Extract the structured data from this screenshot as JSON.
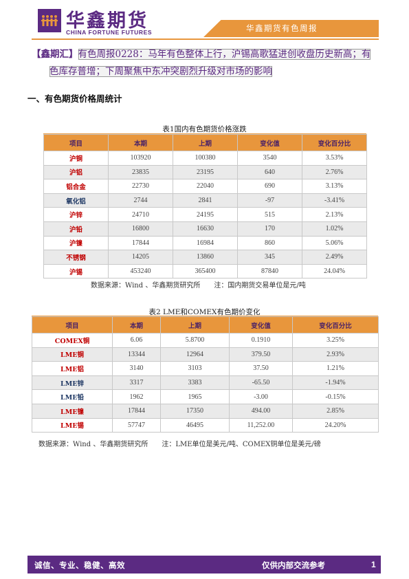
{
  "header": {
    "brand_cn": "华鑫期货",
    "brand_en": "CHINA FORTUNE FUTURES",
    "banner": "华鑫期货有色周报"
  },
  "title": {
    "tag": "【鑫期汇】",
    "text_line1": "有色周报0228：马年有色整体上行，沪锡高歌猛进创收盘历史新高；有",
    "text_line2": "色库存普增；下周聚焦中东冲突剧烈升级对市场的影响"
  },
  "section": {
    "heading": "一、有色期货价格周统计"
  },
  "table1": {
    "caption": "表1国内有色期货价格涨跌",
    "headers": [
      "项目",
      "本期",
      "上期",
      "变化值",
      "变化百分比"
    ],
    "rows": [
      {
        "item": "沪铜",
        "cur": "103920",
        "prev": "100380",
        "chg": "3540",
        "pct": "3.53%",
        "dir": "up"
      },
      {
        "item": "沪铝",
        "cur": "23835",
        "prev": "23195",
        "chg": "640",
        "pct": "2.76%",
        "dir": "up"
      },
      {
        "item": "铝合金",
        "cur": "22730",
        "prev": "22040",
        "chg": "690",
        "pct": "3.13%",
        "dir": "up"
      },
      {
        "item": "氧化铝",
        "cur": "2744",
        "prev": "2841",
        "chg": "-97",
        "pct": "-3.41%",
        "dir": "down"
      },
      {
        "item": "沪锌",
        "cur": "24710",
        "prev": "24195",
        "chg": "515",
        "pct": "2.13%",
        "dir": "up"
      },
      {
        "item": "沪铅",
        "cur": "16800",
        "prev": "16630",
        "chg": "170",
        "pct": "1.02%",
        "dir": "up"
      },
      {
        "item": "沪镍",
        "cur": "17844",
        "prev": "16984",
        "chg": "860",
        "pct": "5.06%",
        "dir": "up"
      },
      {
        "item": "不锈钢",
        "cur": "14205",
        "prev": "13860",
        "chg": "345",
        "pct": "2.49%",
        "dir": "up"
      },
      {
        "item": "沪锡",
        "cur": "453240",
        "prev": "365400",
        "chg": "87840",
        "pct": "24.04%",
        "dir": "up"
      }
    ],
    "note": "数据来源：Wind 、华鑫期货研究所　　注：国内期货交易单位是元/吨"
  },
  "table2": {
    "caption": "表2 LME和COMEX有色期价变化",
    "headers": [
      "项目",
      "本期",
      "上期",
      "变化值",
      "变化百分比"
    ],
    "rows": [
      {
        "item": "COMEX铜",
        "cur": "6.06",
        "prev": "5.8700",
        "chg": "0.1910",
        "pct": "3.25%",
        "dir": "up"
      },
      {
        "item": "LME铜",
        "cur": "13344",
        "prev": "12964",
        "chg": "379.50",
        "pct": "2.93%",
        "dir": "up"
      },
      {
        "item": "LME铝",
        "cur": "3140",
        "prev": "3103",
        "chg": "37.50",
        "pct": "1.21%",
        "dir": "up"
      },
      {
        "item": "LME锌",
        "cur": "3317",
        "prev": "3383",
        "chg": "-65.50",
        "pct": "-1.94%",
        "dir": "down"
      },
      {
        "item": "LME铅",
        "cur": "1962",
        "prev": "1965",
        "chg": "-3.00",
        "pct": "-0.15%",
        "dir": "down"
      },
      {
        "item": "LME镍",
        "cur": "17844",
        "prev": "17350",
        "chg": "494.00",
        "pct": "2.85%",
        "dir": "up"
      },
      {
        "item": "LME锡",
        "cur": "57747",
        "prev": "46495",
        "chg": "11,252.00",
        "pct": "24.20%",
        "dir": "up"
      }
    ],
    "note": "数据来源：Wind 、华鑫期货研究所　　注：LME单位是美元/吨、COMEX铜单位是美元/磅"
  },
  "footer": {
    "left": "诚信、专业、稳健、高效",
    "right": "仅供内部交流参考",
    "page": "1"
  },
  "colors": {
    "brand_purple": "#5b2a82",
    "accent_orange": "#e8963c",
    "up_red": "#c00000",
    "down_navy": "#1f3864"
  }
}
